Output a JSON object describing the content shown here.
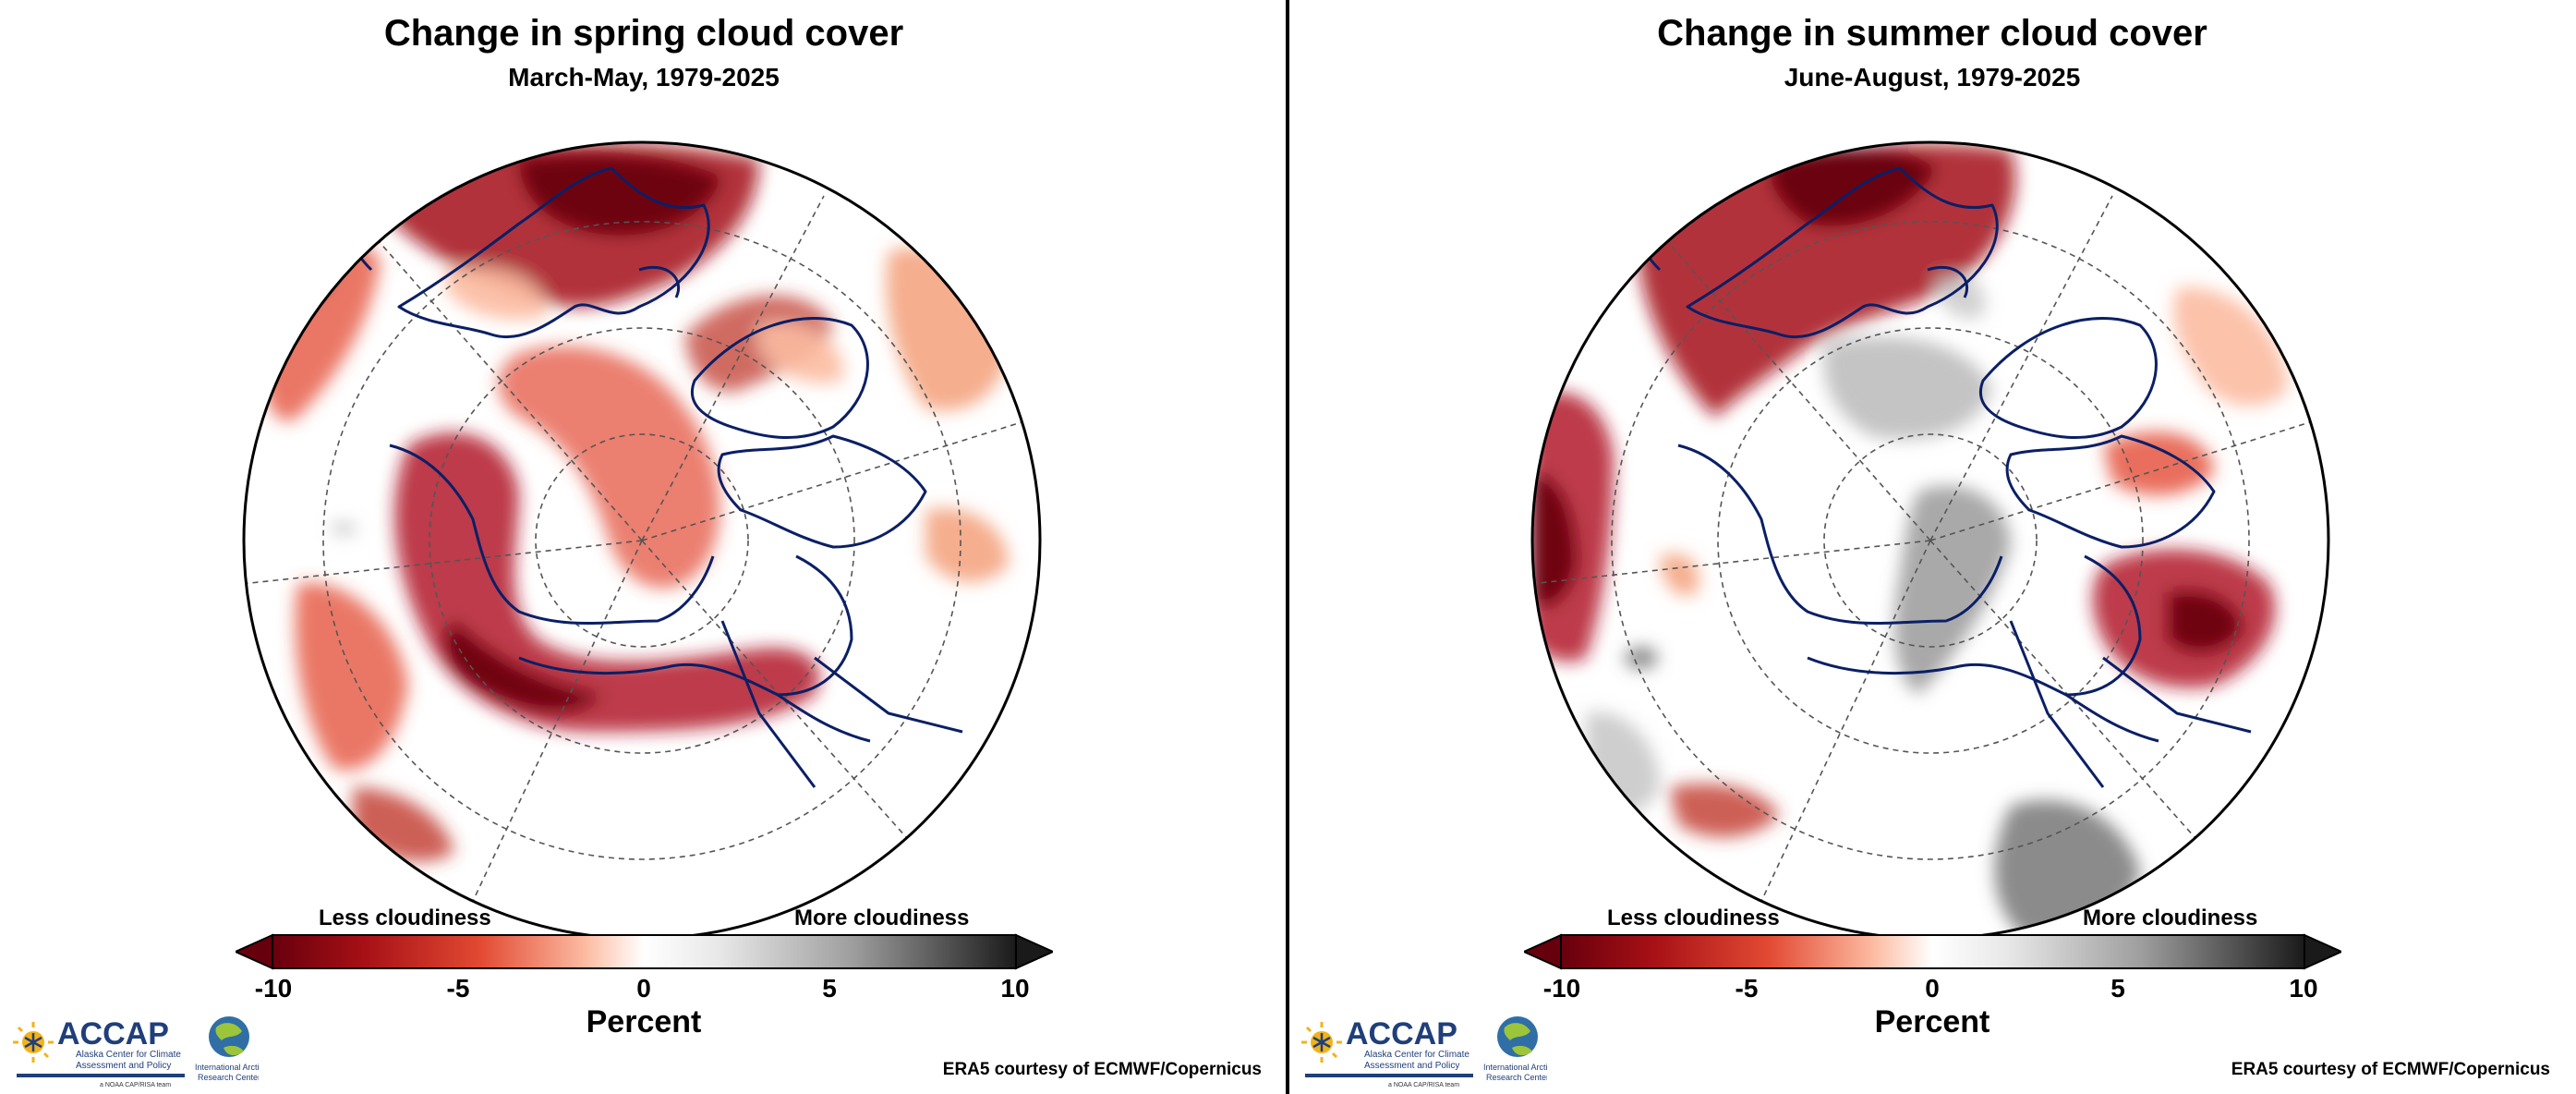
{
  "colors": {
    "dark_red": "#67000d",
    "mid_red": "#c0392b",
    "light_red": "#f4a582",
    "gray": "#8c8c8c",
    "coast": "#0b1f66"
  },
  "panels": [
    {
      "title": "Change in spring cloud cover",
      "subtitle": "March-May, 1979-2025",
      "colorbar": {
        "less_label": "Less cloudiness",
        "more_label": "More cloudiness",
        "ticks": [
          "-10",
          "-5",
          "0",
          "5",
          "10"
        ],
        "units_label": "Percent",
        "min": -10,
        "max": 10
      },
      "logo": {
        "name": "ACCAP",
        "line1": "Alaska Center for Climate",
        "line2": "Assessment and Policy",
        "tag": "a NOAA CAP/RISA team",
        "iarc1": "International Arctic",
        "iarc2": "Research Center"
      },
      "credit": "ERA5 courtesy of ECMWF/Copernicus"
    },
    {
      "title": "Change in summer cloud cover",
      "subtitle": "June-August, 1979-2025",
      "colorbar": {
        "less_label": "Less cloudiness",
        "more_label": "More cloudiness",
        "ticks": [
          "-10",
          "-5",
          "0",
          "5",
          "10"
        ],
        "units_label": "Percent",
        "min": -10,
        "max": 10
      },
      "logo": {
        "name": "ACCAP",
        "line1": "Alaska Center for Climate",
        "line2": "Assessment and Policy",
        "tag": "a NOAA CAP/RISA team",
        "iarc1": "International Arctic",
        "iarc2": "Research Center"
      },
      "credit": "ERA5 courtesy of ECMWF/Copernicus"
    }
  ]
}
